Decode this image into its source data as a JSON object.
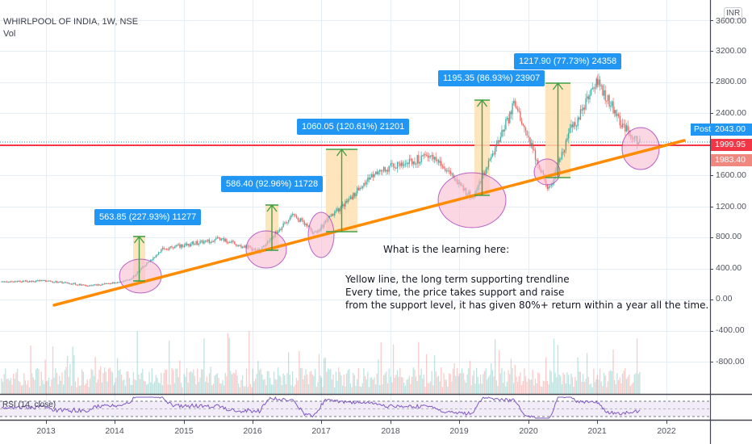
{
  "header": {
    "symbol_title": "WHIRLPOOL OF INDIA, 1W, NSE",
    "volume_label": "Vol"
  },
  "price_axis": {
    "currency": "INR",
    "ticks": [
      "3600.00",
      "3200.00",
      "2800.00",
      "2400.00",
      "1600.00",
      "1200.00",
      "800.00",
      "400.00",
      "0.00",
      "-400.00",
      "-800.00"
    ],
    "last_price": "2043.00",
    "post_label": "Post",
    "red_line_price": "1999.95",
    "prev_close_price": "1983.40"
  },
  "time_axis": {
    "years": [
      "2013",
      "2014",
      "2015",
      "2016",
      "2017",
      "2018",
      "2019",
      "2020",
      "2021",
      "2022"
    ]
  },
  "indicator": {
    "rsi_label": "RSI (14, close)"
  },
  "callouts": [
    {
      "text": "563.85 (227.93%) 11277"
    },
    {
      "text": "586.40 (92.96%) 11728"
    },
    {
      "text": "1060.05 (120.61%) 21201"
    },
    {
      "text": "1195.35 (86.93%) 23907"
    },
    {
      "text": "1217.90 (77.73%) 24358"
    }
  ],
  "note": {
    "title": "What is the learning here:",
    "lines": [
      "Yellow line, the long term supporting trendline",
      "Every time, the price takes support and raise",
      "from the support level, it has given 80%+ return within a year all the time."
    ]
  },
  "colors": {
    "up": "#26a69a",
    "down": "#ef5350",
    "trendline": "#ff8c00",
    "circle_fill": "#f8bbd0",
    "circle_stroke": "#9c27b0",
    "range_fill": "#ffe0b2",
    "arrow": "#43a047",
    "callout_bg": "#2196f3",
    "red_line": "#f23645",
    "rsi_line": "#7e57c2"
  },
  "chart_data": {
    "type": "candlestick",
    "title": "WHIRLPOOL OF INDIA, 1W, NSE",
    "xlabel": "",
    "ylabel": "Price (INR)",
    "ylim": [
      -1000,
      3700
    ],
    "x_ticks": [
      "2013",
      "2014",
      "2015",
      "2016",
      "2017",
      "2018",
      "2019",
      "2020",
      "2021",
      "2022"
    ],
    "approx_price_path": [
      {
        "x": "2012.4",
        "y": 230
      },
      {
        "x": "2013.0",
        "y": 240
      },
      {
        "x": "2013.6",
        "y": 180
      },
      {
        "x": "2014.2",
        "y": 240
      },
      {
        "x": "2014.7",
        "y": 650
      },
      {
        "x": "2015.5",
        "y": 780
      },
      {
        "x": "2016.1",
        "y": 630
      },
      {
        "x": "2016.6",
        "y": 1100
      },
      {
        "x": "2016.9",
        "y": 850
      },
      {
        "x": "2017.3",
        "y": 1200
      },
      {
        "x": "2017.8",
        "y": 1650
      },
      {
        "x": "2018.6",
        "y": 1850
      },
      {
        "x": "2019.2",
        "y": 1300
      },
      {
        "x": "2019.8",
        "y": 2500
      },
      {
        "x": "2020.3",
        "y": 1400
      },
      {
        "x": "2020.6",
        "y": 2150
      },
      {
        "x": "2021.0",
        "y": 2800
      },
      {
        "x": "2021.4",
        "y": 2200
      },
      {
        "x": "2021.6",
        "y": 2043
      }
    ],
    "measurements": [
      {
        "label": "563.85 (227.93%) 11277",
        "change": 563.85,
        "pct": 227.93,
        "bars": 11277
      },
      {
        "label": "586.40 (92.96%) 11728",
        "change": 586.4,
        "pct": 92.96,
        "bars": 11728
      },
      {
        "label": "1060.05 (120.61%) 21201",
        "change": 1060.05,
        "pct": 120.61,
        "bars": 21201
      },
      {
        "label": "1195.35 (86.93%) 23907",
        "change": 1195.35,
        "pct": 86.93,
        "bars": 23907
      },
      {
        "label": "1217.90 (77.73%) 24358",
        "change": 1217.9,
        "pct": 77.73,
        "bars": 24358
      }
    ],
    "horizontal_lines": [
      1999.95
    ],
    "trendline": {
      "from": {
        "x": "2012.9",
        "y": -70
      },
      "to": {
        "x": "2022.3",
        "y": 2030
      }
    },
    "last_price": 2043.0,
    "indicators": [
      "Vol",
      "RSI (14, close)"
    ]
  }
}
